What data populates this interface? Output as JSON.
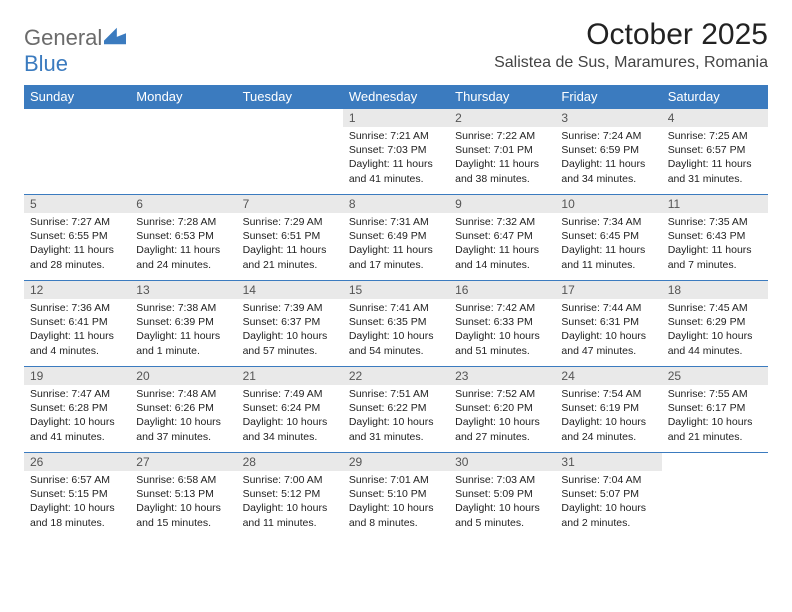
{
  "logo": {
    "text1": "General",
    "text2": "Blue"
  },
  "title": "October 2025",
  "location": "Salistea de Sus, Maramures, Romania",
  "colors": {
    "header_bg": "#3b7bbf",
    "daynum_bg": "#e9e9e9",
    "border": "#3b7bbf"
  },
  "weekdays": [
    "Sunday",
    "Monday",
    "Tuesday",
    "Wednesday",
    "Thursday",
    "Friday",
    "Saturday"
  ],
  "weeks": [
    [
      null,
      null,
      null,
      {
        "n": "1",
        "sr": "Sunrise: 7:21 AM",
        "ss": "Sunset: 7:03 PM",
        "dl": "Daylight: 11 hours and 41 minutes."
      },
      {
        "n": "2",
        "sr": "Sunrise: 7:22 AM",
        "ss": "Sunset: 7:01 PM",
        "dl": "Daylight: 11 hours and 38 minutes."
      },
      {
        "n": "3",
        "sr": "Sunrise: 7:24 AM",
        "ss": "Sunset: 6:59 PM",
        "dl": "Daylight: 11 hours and 34 minutes."
      },
      {
        "n": "4",
        "sr": "Sunrise: 7:25 AM",
        "ss": "Sunset: 6:57 PM",
        "dl": "Daylight: 11 hours and 31 minutes."
      }
    ],
    [
      {
        "n": "5",
        "sr": "Sunrise: 7:27 AM",
        "ss": "Sunset: 6:55 PM",
        "dl": "Daylight: 11 hours and 28 minutes."
      },
      {
        "n": "6",
        "sr": "Sunrise: 7:28 AM",
        "ss": "Sunset: 6:53 PM",
        "dl": "Daylight: 11 hours and 24 minutes."
      },
      {
        "n": "7",
        "sr": "Sunrise: 7:29 AM",
        "ss": "Sunset: 6:51 PM",
        "dl": "Daylight: 11 hours and 21 minutes."
      },
      {
        "n": "8",
        "sr": "Sunrise: 7:31 AM",
        "ss": "Sunset: 6:49 PM",
        "dl": "Daylight: 11 hours and 17 minutes."
      },
      {
        "n": "9",
        "sr": "Sunrise: 7:32 AM",
        "ss": "Sunset: 6:47 PM",
        "dl": "Daylight: 11 hours and 14 minutes."
      },
      {
        "n": "10",
        "sr": "Sunrise: 7:34 AM",
        "ss": "Sunset: 6:45 PM",
        "dl": "Daylight: 11 hours and 11 minutes."
      },
      {
        "n": "11",
        "sr": "Sunrise: 7:35 AM",
        "ss": "Sunset: 6:43 PM",
        "dl": "Daylight: 11 hours and 7 minutes."
      }
    ],
    [
      {
        "n": "12",
        "sr": "Sunrise: 7:36 AM",
        "ss": "Sunset: 6:41 PM",
        "dl": "Daylight: 11 hours and 4 minutes."
      },
      {
        "n": "13",
        "sr": "Sunrise: 7:38 AM",
        "ss": "Sunset: 6:39 PM",
        "dl": "Daylight: 11 hours and 1 minute."
      },
      {
        "n": "14",
        "sr": "Sunrise: 7:39 AM",
        "ss": "Sunset: 6:37 PM",
        "dl": "Daylight: 10 hours and 57 minutes."
      },
      {
        "n": "15",
        "sr": "Sunrise: 7:41 AM",
        "ss": "Sunset: 6:35 PM",
        "dl": "Daylight: 10 hours and 54 minutes."
      },
      {
        "n": "16",
        "sr": "Sunrise: 7:42 AM",
        "ss": "Sunset: 6:33 PM",
        "dl": "Daylight: 10 hours and 51 minutes."
      },
      {
        "n": "17",
        "sr": "Sunrise: 7:44 AM",
        "ss": "Sunset: 6:31 PM",
        "dl": "Daylight: 10 hours and 47 minutes."
      },
      {
        "n": "18",
        "sr": "Sunrise: 7:45 AM",
        "ss": "Sunset: 6:29 PM",
        "dl": "Daylight: 10 hours and 44 minutes."
      }
    ],
    [
      {
        "n": "19",
        "sr": "Sunrise: 7:47 AM",
        "ss": "Sunset: 6:28 PM",
        "dl": "Daylight: 10 hours and 41 minutes."
      },
      {
        "n": "20",
        "sr": "Sunrise: 7:48 AM",
        "ss": "Sunset: 6:26 PM",
        "dl": "Daylight: 10 hours and 37 minutes."
      },
      {
        "n": "21",
        "sr": "Sunrise: 7:49 AM",
        "ss": "Sunset: 6:24 PM",
        "dl": "Daylight: 10 hours and 34 minutes."
      },
      {
        "n": "22",
        "sr": "Sunrise: 7:51 AM",
        "ss": "Sunset: 6:22 PM",
        "dl": "Daylight: 10 hours and 31 minutes."
      },
      {
        "n": "23",
        "sr": "Sunrise: 7:52 AM",
        "ss": "Sunset: 6:20 PM",
        "dl": "Daylight: 10 hours and 27 minutes."
      },
      {
        "n": "24",
        "sr": "Sunrise: 7:54 AM",
        "ss": "Sunset: 6:19 PM",
        "dl": "Daylight: 10 hours and 24 minutes."
      },
      {
        "n": "25",
        "sr": "Sunrise: 7:55 AM",
        "ss": "Sunset: 6:17 PM",
        "dl": "Daylight: 10 hours and 21 minutes."
      }
    ],
    [
      {
        "n": "26",
        "sr": "Sunrise: 6:57 AM",
        "ss": "Sunset: 5:15 PM",
        "dl": "Daylight: 10 hours and 18 minutes."
      },
      {
        "n": "27",
        "sr": "Sunrise: 6:58 AM",
        "ss": "Sunset: 5:13 PM",
        "dl": "Daylight: 10 hours and 15 minutes."
      },
      {
        "n": "28",
        "sr": "Sunrise: 7:00 AM",
        "ss": "Sunset: 5:12 PM",
        "dl": "Daylight: 10 hours and 11 minutes."
      },
      {
        "n": "29",
        "sr": "Sunrise: 7:01 AM",
        "ss": "Sunset: 5:10 PM",
        "dl": "Daylight: 10 hours and 8 minutes."
      },
      {
        "n": "30",
        "sr": "Sunrise: 7:03 AM",
        "ss": "Sunset: 5:09 PM",
        "dl": "Daylight: 10 hours and 5 minutes."
      },
      {
        "n": "31",
        "sr": "Sunrise: 7:04 AM",
        "ss": "Sunset: 5:07 PM",
        "dl": "Daylight: 10 hours and 2 minutes."
      },
      null
    ]
  ]
}
